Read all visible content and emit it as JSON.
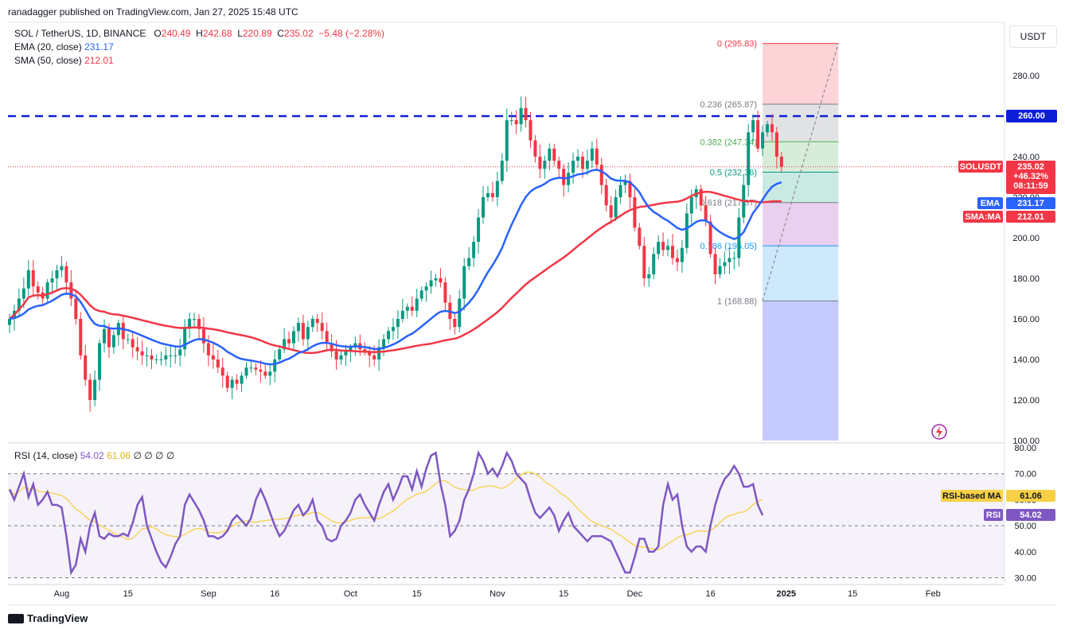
{
  "header": {
    "published": "ranadagger published on TradingView.com, Jan 27, 2025 15:48 UTC",
    "symbol": "SOL / TetherUS, 1D, BINANCE",
    "o_label": "O",
    "o": "240.49",
    "h_label": "H",
    "h": "242.68",
    "l_label": "L",
    "l": "220.89",
    "c_label": "C",
    "c": "235.02",
    "change": "−5.48 (−2.28%)",
    "ema_label": "EMA (20, close)",
    "ema_value": "231.17",
    "sma_label": "SMA (50, close)",
    "sma_value": "212.01"
  },
  "currency": "USDT",
  "rsi_header": {
    "label": "RSI (14, close)",
    "rsi": "54.02",
    "ma": "61.06",
    "extra": "∅ ∅ ∅ ∅"
  },
  "badges": {
    "level": "260.00",
    "symbol": "SOLUSDT",
    "price": "235.02",
    "pct": "+46.32%",
    "countdown": "08:11:59",
    "ema_tag": "EMA",
    "ema_val": "231.17",
    "sma_tag": "SMA:MA",
    "sma_val": "212.01",
    "rsi_ma_tag": "RSI-based MA",
    "rsi_ma_val": "61.06",
    "rsi_tag": "RSI",
    "rsi_val": "54.02"
  },
  "footer_brand": "TradingView",
  "colors": {
    "up": "#089981",
    "down": "#f23645",
    "ema": "#2962ff",
    "sma": "#f23645",
    "rsi": "#7e57c2",
    "rsi_ma": "#f7d046"
  },
  "chart_data": {
    "type": "candlestick",
    "price_axis_ticks": [
      "280.00",
      "260.00",
      "240.00",
      "220.00",
      "200.00",
      "180.00",
      "160.00",
      "140.00",
      "120.00",
      "100.00"
    ],
    "price_axis_values": [
      280,
      260,
      240,
      220,
      200,
      180,
      160,
      140,
      120,
      100
    ],
    "ylim": [
      100,
      300
    ],
    "x_ticks": [
      "Aug",
      "15",
      "Sep",
      "16",
      "Oct",
      "15",
      "Nov",
      "15",
      "Dec",
      "16",
      "2025",
      "15",
      "Feb"
    ],
    "x_tick_days": [
      11,
      25,
      42,
      56,
      72,
      86,
      103,
      117,
      132,
      148,
      164,
      178,
      195
    ],
    "horizontal_level": 260,
    "fib": {
      "start_day": 159,
      "end_day": 175,
      "levels": [
        {
          "ratio": "0",
          "price": 295.83,
          "label": "0 (295.83)",
          "color": "#f23645"
        },
        {
          "ratio": "0.236",
          "price": 265.87,
          "label": "0.236 (265.87)",
          "color": "#787b86"
        },
        {
          "ratio": "0.382",
          "price": 247.34,
          "label": "0.382 (247.34)",
          "color": "#4caf50"
        },
        {
          "ratio": "0.5",
          "price": 232.36,
          "label": "0.5 (232.36)",
          "color": "#089981"
        },
        {
          "ratio": "0.618",
          "price": 217.37,
          "label": "0.618 (217.37)",
          "color": "#787b86"
        },
        {
          "ratio": "0.786",
          "price": 196.05,
          "label": "0.786 (196.05)",
          "color": "#2196f3"
        },
        {
          "ratio": "1",
          "price": 168.88,
          "label": "1 (168.88)",
          "color": "#787b86"
        }
      ],
      "extension_bottom": 100
    },
    "closes": [
      160,
      164,
      170,
      175,
      184,
      176,
      173,
      170,
      178,
      180,
      184,
      186,
      178,
      170,
      160,
      142,
      130,
      120,
      130,
      148,
      155,
      146,
      152,
      158,
      150,
      150,
      146,
      144,
      142,
      142,
      140,
      140,
      140,
      142,
      142,
      142,
      145,
      156,
      160,
      160,
      155,
      148,
      142,
      140,
      136,
      132,
      126,
      130,
      128,
      132,
      136,
      136,
      135,
      134,
      132,
      134,
      140,
      145,
      150,
      148,
      154,
      158,
      150,
      156,
      160,
      158,
      154,
      148,
      144,
      140,
      142,
      144,
      146,
      148,
      145,
      144,
      142,
      140,
      146,
      150,
      154,
      156,
      160,
      164,
      166,
      164,
      170,
      174,
      176,
      179,
      180,
      178,
      168,
      160,
      156,
      170,
      186,
      190,
      198,
      210,
      220,
      222,
      220,
      228,
      238,
      258,
      258,
      256,
      264,
      258,
      248,
      240,
      234,
      238,
      244,
      238,
      234,
      226,
      232,
      238,
      240,
      234,
      238,
      244,
      236,
      226,
      216,
      210,
      220,
      226,
      228,
      220,
      205,
      196,
      180,
      182,
      192,
      198,
      194,
      196,
      190,
      188,
      195,
      212,
      220,
      224,
      216,
      208,
      192,
      182,
      186,
      188,
      190,
      190,
      210,
      226,
      252,
      258,
      244,
      252,
      256,
      252,
      240,
      235
    ],
    "rsi": [
      64,
      60,
      65,
      70,
      61,
      66,
      58,
      60,
      63,
      58,
      58,
      57,
      46,
      32,
      35,
      45,
      40,
      50,
      55,
      46,
      45,
      47,
      46,
      46,
      47,
      46,
      51,
      58,
      61,
      50,
      45,
      40,
      36,
      34,
      38,
      43,
      46,
      58,
      62,
      59,
      56,
      52,
      46,
      46,
      45,
      46,
      48,
      52,
      54,
      52,
      50,
      53,
      60,
      64,
      60,
      55,
      50,
      46,
      48,
      52,
      56,
      58,
      54,
      56,
      60,
      52,
      50,
      45,
      44,
      45,
      50,
      52,
      55,
      60,
      62,
      58,
      55,
      52,
      58,
      63,
      66,
      60,
      64,
      69,
      69,
      64,
      71,
      65,
      72,
      77,
      78,
      66,
      58,
      46,
      48,
      52,
      60,
      64,
      70,
      78,
      75,
      70,
      72,
      69,
      73,
      78,
      75,
      70,
      68,
      66,
      60,
      55,
      53,
      55,
      57,
      54,
      48,
      52,
      55,
      50,
      48,
      46,
      44,
      46,
      46,
      46,
      45,
      44,
      40,
      36,
      32,
      32,
      38,
      45,
      45,
      40,
      40,
      42,
      58,
      66,
      60,
      62,
      50,
      42,
      40,
      42,
      42,
      40,
      50,
      58,
      64,
      68,
      70,
      73,
      70,
      65,
      65,
      66,
      58,
      54
    ],
    "rsi_levels": [
      70,
      50,
      30
    ],
    "rsi_axis_ticks": [
      "80.00",
      "70.00",
      "60.00",
      "50.00",
      "40.00",
      "30.00"
    ],
    "rsi_axis_values": [
      80,
      70,
      60,
      50,
      40,
      30
    ]
  }
}
